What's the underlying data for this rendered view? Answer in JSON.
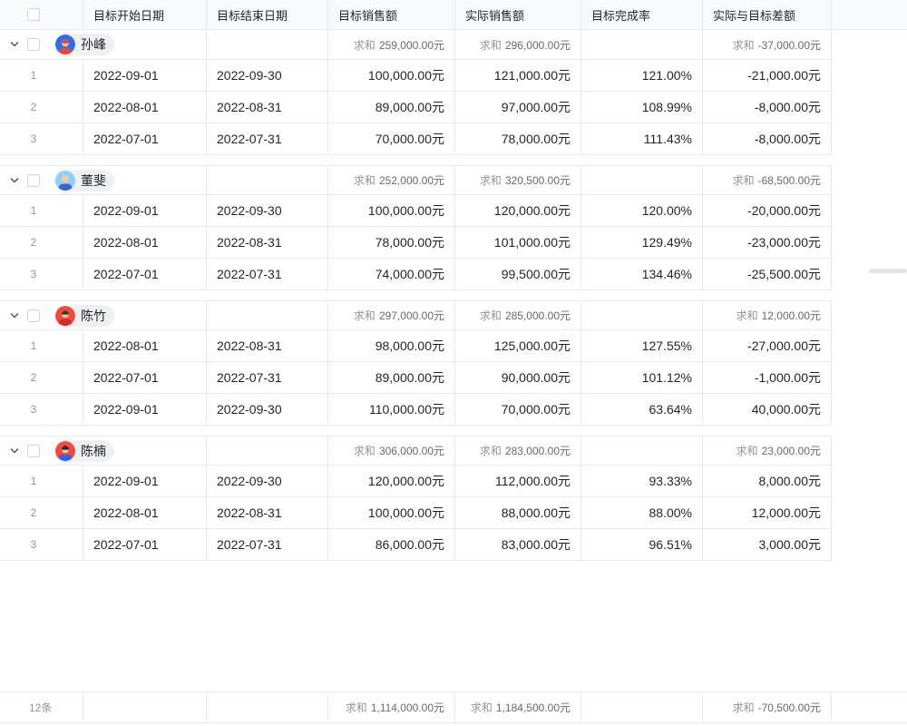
{
  "table": {
    "sum_label": "求和",
    "columns": [
      {
        "label": ""
      },
      {
        "label": "目标开始日期"
      },
      {
        "label": "目标结束日期"
      },
      {
        "label": "目标销售额"
      },
      {
        "label": "实际销售额"
      },
      {
        "label": "目标完成率"
      },
      {
        "label": "实际与目标差额"
      }
    ],
    "groups": [
      {
        "name": "孙峰",
        "avatar": {
          "bg": "#2e6bf5",
          "skin": "#f5c09a",
          "hair": "#e8442e",
          "shirt": "#e5473a",
          "bald": false
        },
        "sums": {
          "target": "259,000.00元",
          "actual": "296,000.00元",
          "diff": "-37,000.00元"
        },
        "rows": [
          {
            "no": "1",
            "start": "2022-09-01",
            "end": "2022-09-30",
            "target": "100,000.00元",
            "actual": "121,000.00元",
            "rate": "121.00%",
            "diff": "-21,000.00元"
          },
          {
            "no": "2",
            "start": "2022-08-01",
            "end": "2022-08-31",
            "target": "89,000.00元",
            "actual": "97,000.00元",
            "rate": "108.99%",
            "diff": "-8,000.00元"
          },
          {
            "no": "3",
            "start": "2022-07-01",
            "end": "2022-07-31",
            "target": "70,000.00元",
            "actual": "78,000.00元",
            "rate": "111.43%",
            "diff": "-8,000.00元"
          }
        ]
      },
      {
        "name": "董斐",
        "avatar": {
          "bg": "#8fd0f8",
          "skin": "#f3c9a6",
          "hair": "#f3c9a6",
          "shirt": "#3a66c9",
          "bald": true
        },
        "sums": {
          "target": "252,000.00元",
          "actual": "320,500.00元",
          "diff": "-68,500.00元"
        },
        "rows": [
          {
            "no": "1",
            "start": "2022-09-01",
            "end": "2022-09-30",
            "target": "100,000.00元",
            "actual": "120,000.00元",
            "rate": "120.00%",
            "diff": "-20,000.00元"
          },
          {
            "no": "2",
            "start": "2022-08-01",
            "end": "2022-08-31",
            "target": "78,000.00元",
            "actual": "101,000.00元",
            "rate": "129.49%",
            "diff": "-23,000.00元"
          },
          {
            "no": "3",
            "start": "2022-07-01",
            "end": "2022-07-31",
            "target": "74,000.00元",
            "actual": "99,500.00元",
            "rate": "134.46%",
            "diff": "-25,500.00元"
          }
        ]
      },
      {
        "name": "陈竹",
        "avatar": {
          "bg": "#f5493d",
          "skin": "#f5c09a",
          "hair": "#4a3428",
          "shirt": "#c9302a",
          "bald": false
        },
        "sums": {
          "target": "297,000.00元",
          "actual": "285,000.00元",
          "diff": "12,000.00元"
        },
        "rows": [
          {
            "no": "1",
            "start": "2022-08-01",
            "end": "2022-08-31",
            "target": "98,000.00元",
            "actual": "125,000.00元",
            "rate": "127.55%",
            "diff": "-27,000.00元"
          },
          {
            "no": "2",
            "start": "2022-07-01",
            "end": "2022-07-31",
            "target": "89,000.00元",
            "actual": "90,000.00元",
            "rate": "101.12%",
            "diff": "-1,000.00元"
          },
          {
            "no": "3",
            "start": "2022-09-01",
            "end": "2022-09-30",
            "target": "110,000.00元",
            "actual": "70,000.00元",
            "rate": "63.64%",
            "diff": "40,000.00元"
          }
        ]
      },
      {
        "name": "陈楠",
        "avatar": {
          "bg": "#f5493d",
          "skin": "#f5c09a",
          "hair": "#2f2a33",
          "shirt": "#2e65f5",
          "bald": false
        },
        "sums": {
          "target": "306,000.00元",
          "actual": "283,000.00元",
          "diff": "23,000.00元"
        },
        "rows": [
          {
            "no": "1",
            "start": "2022-09-01",
            "end": "2022-09-30",
            "target": "120,000.00元",
            "actual": "112,000.00元",
            "rate": "93.33%",
            "diff": "8,000.00元"
          },
          {
            "no": "2",
            "start": "2022-08-01",
            "end": "2022-08-31",
            "target": "100,000.00元",
            "actual": "88,000.00元",
            "rate": "88.00%",
            "diff": "12,000.00元"
          },
          {
            "no": "3",
            "start": "2022-07-01",
            "end": "2022-07-31",
            "target": "86,000.00元",
            "actual": "83,000.00元",
            "rate": "96.51%",
            "diff": "3,000.00元"
          }
        ]
      }
    ],
    "footer": {
      "count": "12条",
      "target": "1,114,000.00元",
      "actual": "1,184,500.00元",
      "diff": "-70,500.00元"
    }
  },
  "ui": {
    "chevron_color": "#51565d"
  }
}
